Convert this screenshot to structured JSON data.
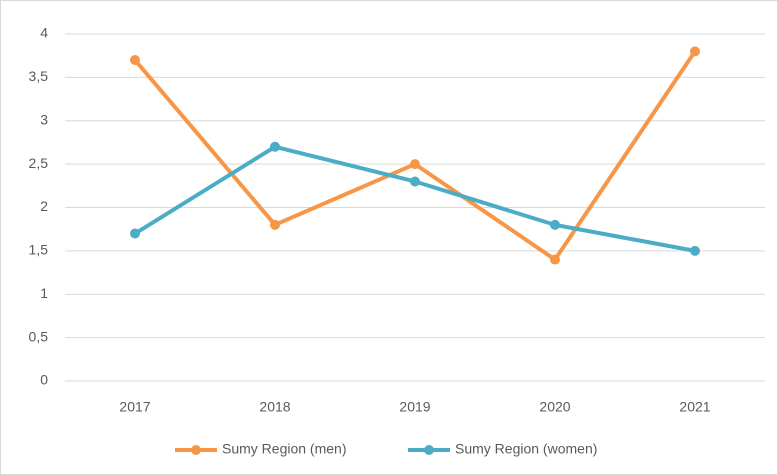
{
  "chart_data": {
    "type": "line",
    "categories": [
      "2017",
      "2018",
      "2019",
      "2020",
      "2021"
    ],
    "series": [
      {
        "name": "Sumy Region (men)",
        "color": "#f79646",
        "values": [
          3.7,
          1.8,
          2.5,
          1.4,
          3.8
        ]
      },
      {
        "name": "Sumy Region (women)",
        "color": "#4bacc6",
        "values": [
          1.7,
          2.7,
          2.3,
          1.8,
          1.5
        ]
      }
    ],
    "ylim": [
      0,
      4
    ],
    "yticks": [
      0,
      {
        "value": 0.5,
        "label": "0,5"
      },
      1,
      {
        "value": 1.5,
        "label": "1,5"
      },
      2,
      {
        "value": 2.5,
        "label": "2,5"
      },
      3,
      {
        "value": 3.5,
        "label": "3,5"
      },
      4
    ],
    "grid": true,
    "legend": "bottom"
  }
}
